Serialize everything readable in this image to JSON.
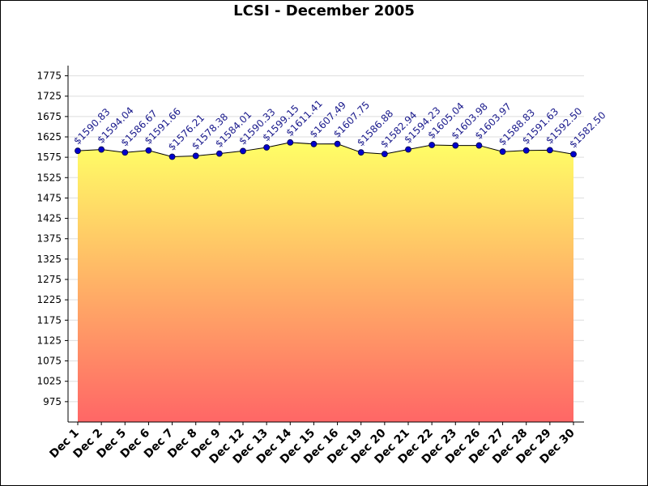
{
  "chart_data": {
    "type": "area",
    "title": "LCSI - December 2005",
    "categories": [
      "Dec 1",
      "Dec 2",
      "Dec 5",
      "Dec 6",
      "Dec 7",
      "Dec 8",
      "Dec 9",
      "Dec 12",
      "Dec 13",
      "Dec 14",
      "Dec 15",
      "Dec 16",
      "Dec 19",
      "Dec 20",
      "Dec 21",
      "Dec 22",
      "Dec 23",
      "Dec 26",
      "Dec 27",
      "Dec 28",
      "Dec 29",
      "Dec 30"
    ],
    "values": [
      1590.83,
      1594.04,
      1586.67,
      1591.66,
      1576.21,
      1578.38,
      1584.01,
      1590.33,
      1599.15,
      1611.41,
      1607.49,
      1607.75,
      1586.88,
      1582.94,
      1594.23,
      1605.04,
      1603.98,
      1603.97,
      1588.83,
      1591.63,
      1592.5,
      1582.5
    ],
    "data_labels": [
      "$1590.83",
      "$1594.04",
      "$1586.67",
      "$1591.66",
      "$1576.21",
      "$1578.38",
      "$1584.01",
      "$1590.33",
      "$1599.15",
      "$1611.41",
      "$1607.49",
      "$1607.75",
      "$1586.88",
      "$1582.94",
      "$1594.23",
      "$1605.04",
      "$1603.98",
      "$1603.97",
      "$1588.83",
      "$1591.63",
      "$1592.50",
      "$1582.50"
    ],
    "y_ticks": [
      975,
      1025,
      1075,
      1125,
      1175,
      1225,
      1275,
      1325,
      1375,
      1425,
      1475,
      1525,
      1575,
      1625,
      1675,
      1725,
      1775
    ],
    "ylim": [
      925,
      1800
    ],
    "xlabel": "",
    "ylabel": "",
    "grid": true,
    "colors": {
      "fill_top": "#ffff66",
      "fill_bottom": "#ff6666",
      "line": "#000000",
      "marker": "#0000cc",
      "grid": "#dddddd"
    }
  }
}
